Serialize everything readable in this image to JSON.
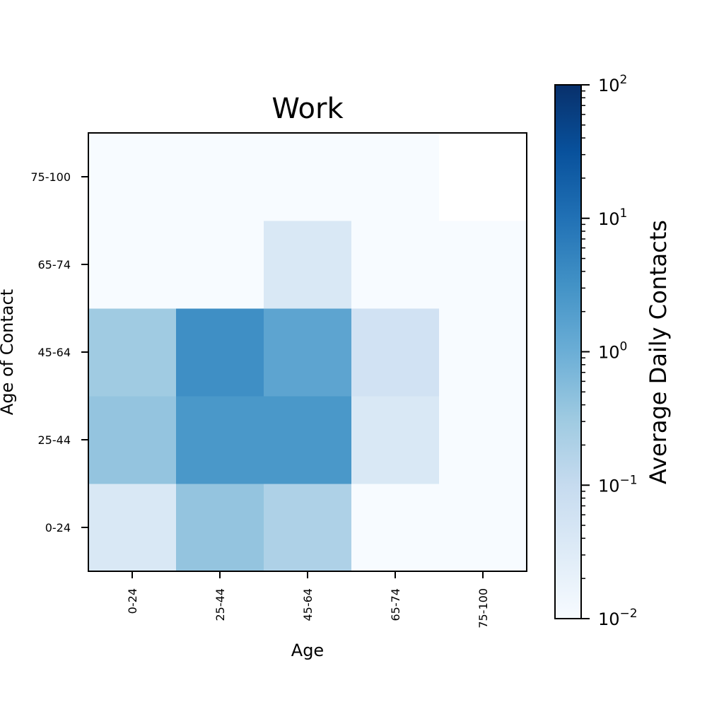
{
  "chart_data": {
    "type": "heatmap",
    "title": "Work",
    "xlabel": "Age",
    "ylabel": "Age of Contact",
    "x_categories": [
      "0-24",
      "25-44",
      "45-64",
      "65-74",
      "75-100"
    ],
    "y_categories": [
      "0-24",
      "25-44",
      "45-64",
      "65-74",
      "75-100"
    ],
    "values": [
      [
        0.04,
        0.4,
        0.2,
        0.01,
        0.01
      ],
      [
        0.4,
        2.5,
        2.5,
        0.04,
        0.01
      ],
      [
        0.3,
        3.5,
        1.5,
        0.06,
        0.01
      ],
      [
        0.01,
        0.01,
        0.04,
        0.01,
        0.01
      ],
      [
        0.01,
        0.01,
        0.01,
        0.01,
        null
      ]
    ],
    "colorbar": {
      "label": "Average Daily Contacts",
      "scale": "log",
      "range": [
        0.01,
        100
      ],
      "ticks": [
        {
          "value": 0.01,
          "base": "10",
          "exp": "−2"
        },
        {
          "value": 0.1,
          "base": "10",
          "exp": "−1"
        },
        {
          "value": 1,
          "base": "10",
          "exp": "0"
        },
        {
          "value": 10,
          "base": "10",
          "exp": "1"
        },
        {
          "value": 100,
          "base": "10",
          "exp": "2"
        }
      ],
      "colormap": "Blues"
    }
  }
}
